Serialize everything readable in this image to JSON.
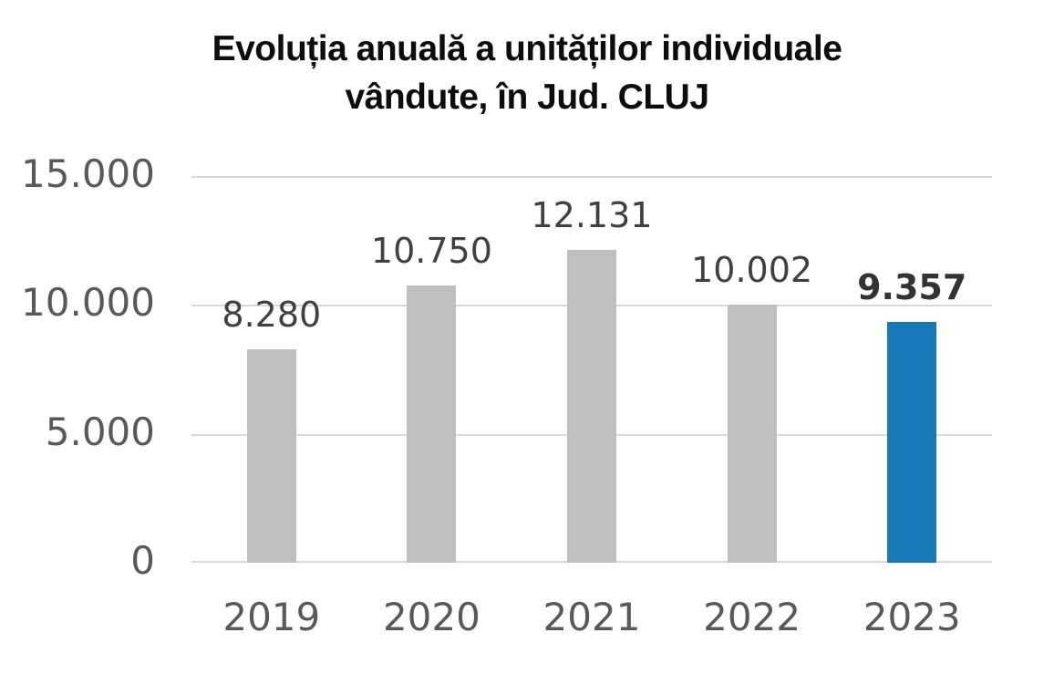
{
  "chart_data": {
    "type": "bar",
    "title": "Evoluția anuală a unităților individuale\nvândute, în Jud. CLUJ",
    "categories": [
      "2019",
      "2020",
      "2021",
      "2022",
      "2023"
    ],
    "values": [
      8280,
      10750,
      12131,
      10002,
      9357
    ],
    "value_labels": [
      "8.280",
      "10.750",
      "12.131",
      "10.002",
      "9.357"
    ],
    "highlight_index": 4,
    "xlabel": "",
    "ylabel": "",
    "ylim": [
      0,
      15000
    ],
    "yticks": [
      {
        "value": 15000,
        "label": "15.000"
      },
      {
        "value": 10000,
        "label": "10.000"
      },
      {
        "value": 5000,
        "label": "5.000"
      },
      {
        "value": 0,
        "label": "0"
      }
    ],
    "grid": "horizontal",
    "legend": "none",
    "colors": {
      "bar_default": "#bfbfbf",
      "bar_highlight": "#1878b8",
      "gridline": "#d9d9d9",
      "axis_text": "#595959",
      "value_label_text": "#404040",
      "highlight_label_text": "#333333",
      "title_text": "#0d0d0d",
      "background": "#ffffff"
    }
  }
}
